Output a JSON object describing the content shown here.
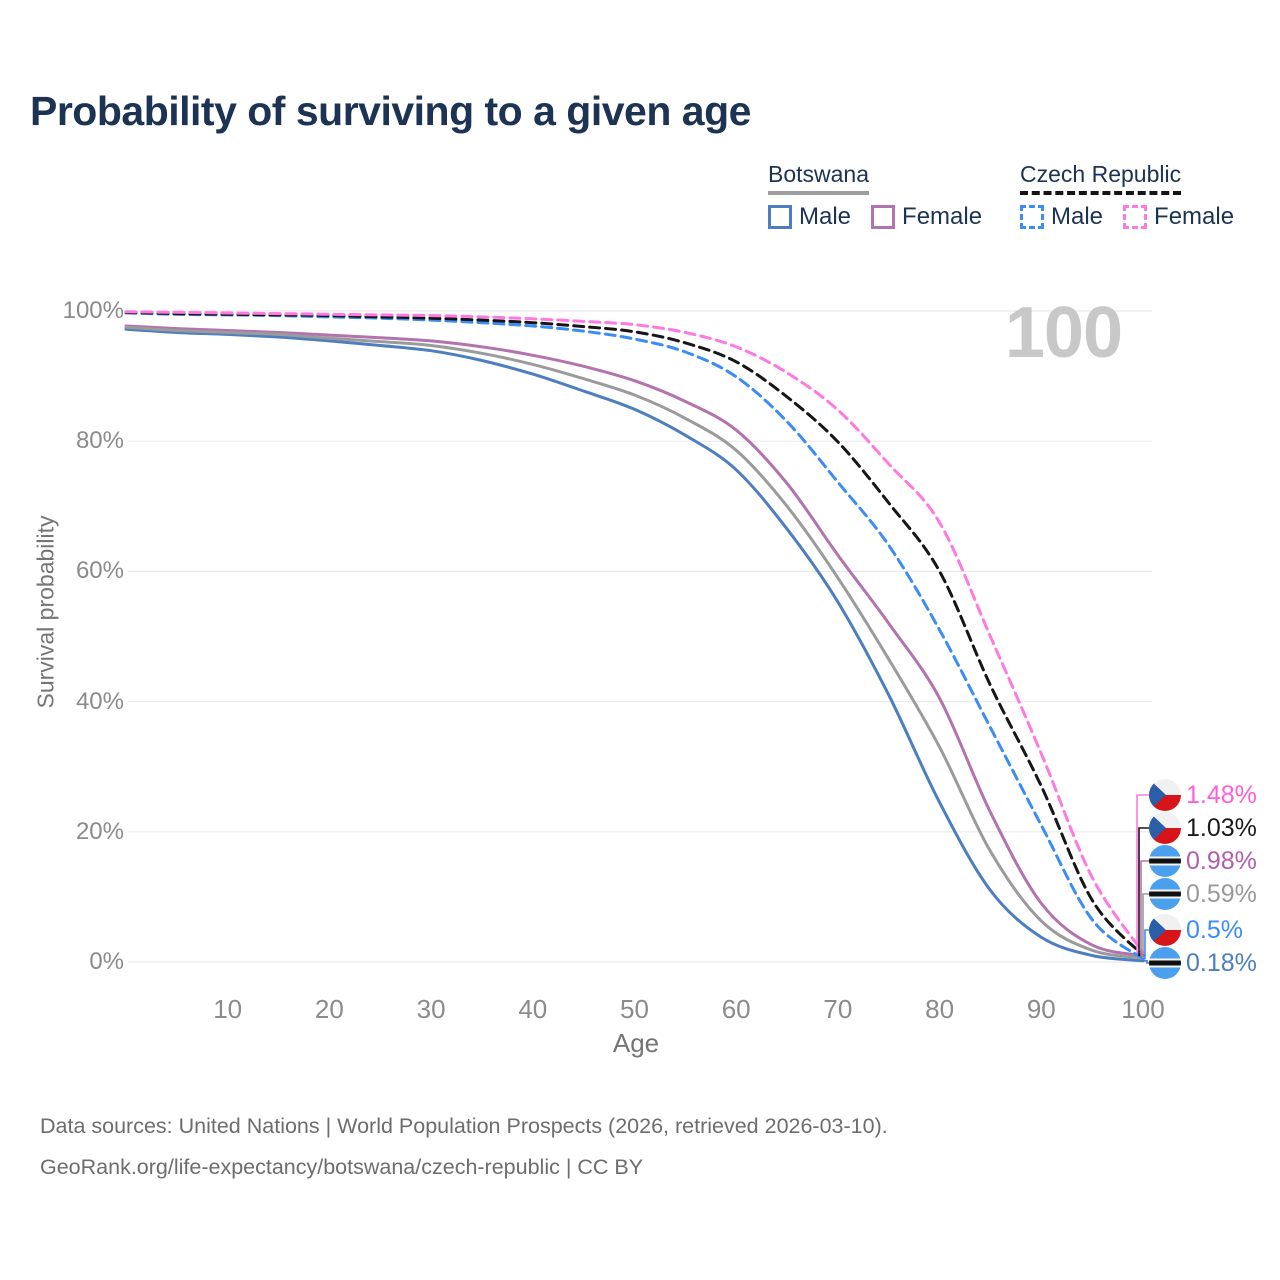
{
  "title": "Probability of surviving to a given age",
  "legend": {
    "groups": [
      {
        "label": "Botswana",
        "line_style": "solid",
        "underline_color": "#9e9e9e",
        "items": [
          {
            "label": "Male",
            "color": "#4d7ebf",
            "dashed": false
          },
          {
            "label": "Female",
            "color": "#b273ae",
            "dashed": false
          }
        ]
      },
      {
        "label": "Czech Republic",
        "line_style": "dashed",
        "underline_color": "#141414",
        "items": [
          {
            "label": "Male",
            "color": "#3b8df5",
            "dashed": true
          },
          {
            "label": "Female",
            "color": "#ff7ae0",
            "dashed": true
          }
        ]
      }
    ]
  },
  "chart_data": {
    "type": "line",
    "title": "Probability of surviving to a given age",
    "xlabel": "Age",
    "ylabel": "Survival probability",
    "xlim": [
      0,
      100
    ],
    "ylim": [
      0,
      100
    ],
    "x_ticks": [
      10,
      20,
      30,
      40,
      50,
      60,
      70,
      80,
      90,
      100
    ],
    "y_ticks": [
      {
        "value": 0,
        "label": "0%"
      },
      {
        "value": 20,
        "label": "20%"
      },
      {
        "value": 40,
        "label": "40%"
      },
      {
        "value": 60,
        "label": "60%"
      },
      {
        "value": 80,
        "label": "80%"
      },
      {
        "value": 100,
        "label": "100%"
      }
    ],
    "grid": "horizontal",
    "age_marker": "100",
    "x": [
      0,
      5,
      10,
      15,
      20,
      25,
      30,
      35,
      40,
      45,
      50,
      55,
      60,
      65,
      70,
      75,
      80,
      85,
      90,
      95,
      100
    ],
    "series": [
      {
        "name": "Botswana Male",
        "country": "Botswana",
        "sex": "Male",
        "style": "solid",
        "color": "#4d7ebf",
        "values": [
          97.2,
          96.7,
          96.4,
          96.0,
          95.4,
          94.7,
          93.9,
          92.4,
          90.3,
          87.7,
          84.9,
          80.9,
          75.6,
          66.5,
          55.3,
          41.0,
          24.5,
          11.0,
          3.8,
          1.0,
          0.18
        ]
      },
      {
        "name": "Botswana Female",
        "country": "Botswana",
        "sex": "Female",
        "style": "solid",
        "color": "#b273ae",
        "values": [
          97.7,
          97.3,
          97.0,
          96.7,
          96.3,
          95.9,
          95.4,
          94.5,
          93.2,
          91.5,
          89.3,
          86.1,
          81.7,
          73.5,
          62.5,
          52.0,
          40.5,
          23.0,
          9.0,
          2.6,
          0.98
        ]
      },
      {
        "name": "Botswana Both sexes",
        "country": "Botswana",
        "sex": "Both",
        "style": "solid",
        "color": "#9b9b9b",
        "values": [
          97.5,
          97.0,
          96.7,
          96.4,
          95.8,
          95.3,
          94.7,
          93.5,
          91.8,
          89.6,
          87.1,
          83.5,
          78.6,
          70.0,
          59.0,
          46.5,
          33.0,
          17.0,
          6.3,
          1.8,
          0.59
        ]
      },
      {
        "name": "Czech Republic Male",
        "country": "Czech Republic",
        "sex": "Male",
        "style": "dashed",
        "color": "#3b8df5",
        "values": [
          99.7,
          99.5,
          99.4,
          99.3,
          99.1,
          98.9,
          98.6,
          98.2,
          97.7,
          96.9,
          95.7,
          93.7,
          89.9,
          83.0,
          73.7,
          64.0,
          51.0,
          36.0,
          21.0,
          6.5,
          0.5
        ]
      },
      {
        "name": "Czech Republic Both sexes",
        "country": "Czech Republic",
        "sex": "Both",
        "style": "dashed",
        "color": "#161616",
        "values": [
          99.8,
          99.6,
          99.5,
          99.4,
          99.3,
          99.1,
          98.9,
          98.6,
          98.2,
          97.6,
          96.8,
          95.1,
          92.2,
          86.8,
          79.9,
          70.5,
          60.0,
          42.5,
          27.0,
          9.5,
          1.03
        ]
      },
      {
        "name": "Czech Republic Female",
        "country": "Czech Republic",
        "sex": "Female",
        "style": "dashed",
        "color": "#ff7ae0",
        "values": [
          99.9,
          99.8,
          99.7,
          99.6,
          99.5,
          99.4,
          99.3,
          99.1,
          98.8,
          98.4,
          97.9,
          96.7,
          94.5,
          90.5,
          84.8,
          76.5,
          67.5,
          50.0,
          32.0,
          13.0,
          1.48
        ]
      }
    ],
    "end_labels": [
      {
        "text": "1.48%",
        "color": "#ff5fd6",
        "flag": "czech-republic-flag",
        "series_index": 5
      },
      {
        "text": "1.03%",
        "color": "#1a1a1a",
        "flag": "czech-republic-flag",
        "series_index": 4
      },
      {
        "text": "0.98%",
        "color": "#b05fae",
        "flag": "botswana-flag",
        "series_index": 1
      },
      {
        "text": "0.59%",
        "color": "#9a9a9a",
        "flag": "botswana-flag",
        "series_index": 2
      },
      {
        "text": "0.5%",
        "color": "#3b8df5",
        "flag": "czech-republic-flag",
        "series_index": 3
      },
      {
        "text": "0.18%",
        "color": "#4d7ebf",
        "flag": "botswana-flag",
        "series_index": 0
      }
    ]
  },
  "footer": {
    "line1": "Data sources: United Nations | World Population Prospects (2026, retrieved 2026-03-10).",
    "line2": "GeoRank.org/life-expectancy/botswana/czech-republic | CC BY"
  }
}
